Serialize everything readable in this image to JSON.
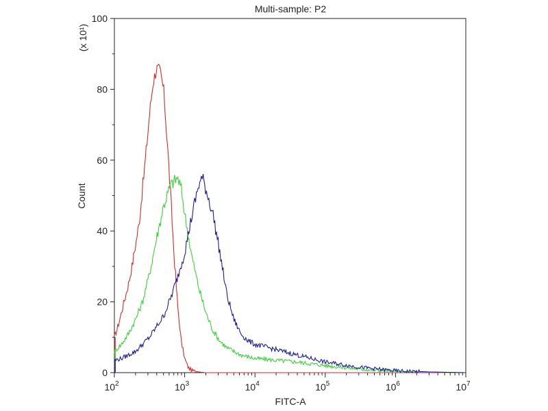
{
  "chart_data": {
    "type": "line",
    "title": "Multi-sample: P2",
    "xlabel": "FITC-A",
    "ylabel": "Count",
    "y_multiplier_label": "(x 10¹)",
    "x_scale": "log",
    "xlim_log10": [
      2,
      7
    ],
    "ylim": [
      0,
      100
    ],
    "x_ticks": [
      {
        "log10": 2,
        "base": "10",
        "exp": "2"
      },
      {
        "log10": 3,
        "base": "10",
        "exp": "3"
      },
      {
        "log10": 4,
        "base": "10",
        "exp": "4"
      },
      {
        "log10": 5,
        "base": "10",
        "exp": "5"
      },
      {
        "log10": 6,
        "base": "10",
        "exp": "6"
      },
      {
        "log10": 7,
        "base": "10",
        "exp": "7"
      }
    ],
    "y_ticks": [
      0,
      20,
      40,
      60,
      80,
      100
    ],
    "grid": false,
    "series": [
      {
        "name": "red",
        "color": "#d42a2a",
        "points": [
          [
            2.0,
            10
          ],
          [
            2.05,
            13
          ],
          [
            2.1,
            17
          ],
          [
            2.15,
            21
          ],
          [
            2.2,
            25
          ],
          [
            2.25,
            30
          ],
          [
            2.3,
            36
          ],
          [
            2.35,
            42
          ],
          [
            2.4,
            52
          ],
          [
            2.45,
            62
          ],
          [
            2.5,
            73
          ],
          [
            2.55,
            82
          ],
          [
            2.6,
            86
          ],
          [
            2.65,
            85
          ],
          [
            2.7,
            80
          ],
          [
            2.75,
            66
          ],
          [
            2.8,
            50
          ],
          [
            2.85,
            33
          ],
          [
            2.9,
            19
          ],
          [
            2.95,
            9
          ],
          [
            3.0,
            4
          ],
          [
            3.05,
            1.5
          ],
          [
            3.1,
            0.6
          ],
          [
            3.2,
            0.2
          ],
          [
            3.3,
            0
          ],
          [
            4.0,
            0
          ],
          [
            5.0,
            0
          ],
          [
            6.0,
            0
          ],
          [
            7.0,
            0
          ]
        ]
      },
      {
        "name": "green",
        "color": "#3ad03a",
        "points": [
          [
            2.0,
            6
          ],
          [
            2.1,
            8
          ],
          [
            2.2,
            11
          ],
          [
            2.3,
            15
          ],
          [
            2.4,
            20
          ],
          [
            2.5,
            28
          ],
          [
            2.6,
            38
          ],
          [
            2.7,
            47
          ],
          [
            2.8,
            53
          ],
          [
            2.9,
            55
          ],
          [
            2.95,
            52
          ],
          [
            3.0,
            45
          ],
          [
            3.1,
            33
          ],
          [
            3.2,
            24
          ],
          [
            3.3,
            17
          ],
          [
            3.4,
            12
          ],
          [
            3.5,
            9
          ],
          [
            3.6,
            7
          ],
          [
            3.7,
            6
          ],
          [
            3.8,
            5
          ],
          [
            4.0,
            4
          ],
          [
            4.3,
            3.5
          ],
          [
            4.6,
            3
          ],
          [
            5.0,
            2
          ],
          [
            5.5,
            1
          ],
          [
            6.0,
            0.3
          ],
          [
            6.5,
            0.1
          ],
          [
            7.0,
            0
          ]
        ]
      },
      {
        "name": "blue",
        "color": "#1c1c99",
        "points": [
          [
            2.0,
            3.5
          ],
          [
            2.1,
            4
          ],
          [
            2.2,
            5
          ],
          [
            2.3,
            6
          ],
          [
            2.4,
            8
          ],
          [
            2.5,
            10
          ],
          [
            2.6,
            13
          ],
          [
            2.7,
            16
          ],
          [
            2.8,
            21
          ],
          [
            2.9,
            27
          ],
          [
            3.0,
            34
          ],
          [
            3.1,
            44
          ],
          [
            3.2,
            53
          ],
          [
            3.25,
            55
          ],
          [
            3.3,
            52
          ],
          [
            3.4,
            45
          ],
          [
            3.5,
            34
          ],
          [
            3.6,
            22
          ],
          [
            3.7,
            15
          ],
          [
            3.8,
            11
          ],
          [
            3.9,
            9
          ],
          [
            4.0,
            8
          ],
          [
            4.2,
            7
          ],
          [
            4.4,
            6
          ],
          [
            4.6,
            5
          ],
          [
            5.0,
            3
          ],
          [
            5.5,
            1.5
          ],
          [
            6.0,
            0.5
          ],
          [
            6.5,
            0.2
          ],
          [
            7.0,
            0
          ]
        ]
      }
    ]
  }
}
